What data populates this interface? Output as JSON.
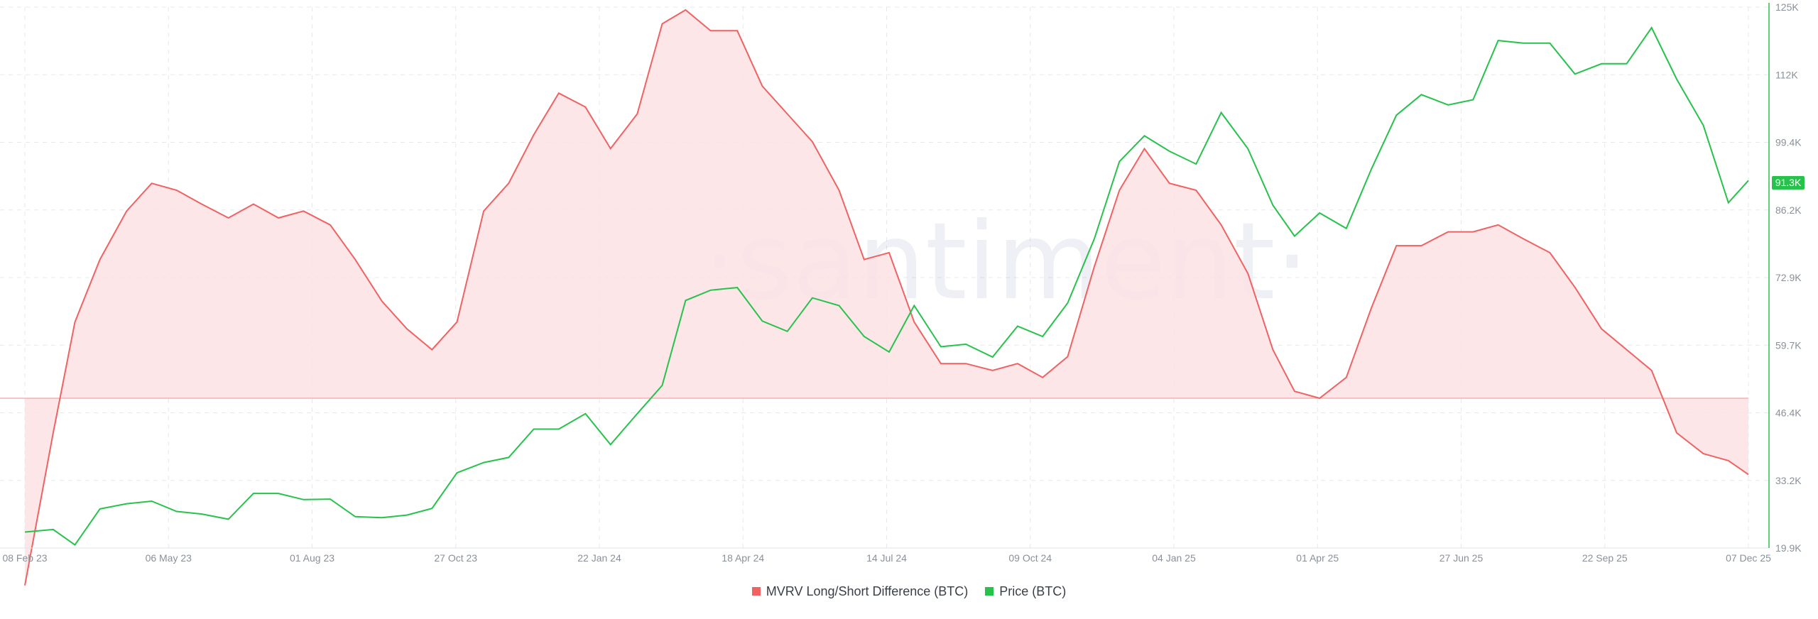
{
  "chart_data": {
    "type": "line",
    "watermark": "·santiment·",
    "x_ticks": [
      "08 Feb 23",
      "06 May 23",
      "01 Aug 23",
      "27 Oct 23",
      "22 Jan 24",
      "18 Apr 24",
      "14 Jul 24",
      "09 Oct 24",
      "04 Jan 25",
      "01 Apr 25",
      "27 Jun 25",
      "22 Sep 25",
      "07 Dec 25"
    ],
    "y_right": {
      "label_ticks": [
        "19.9K",
        "33.2K",
        "46.4K",
        "59.7K",
        "72.9K",
        "86.2K",
        "99.4K",
        "112K",
        "125K"
      ],
      "min": 19.9,
      "max": 125,
      "unit": "K"
    },
    "price_badge": "91.3K",
    "colors": {
      "mvrv": "#f06262",
      "mvrv_fill": "#fde2e4",
      "price": "#27c24c",
      "grid": "#e6e8ec"
    },
    "series": [
      {
        "name": "MVRV Long/Short Difference (BTC)",
        "color": "#f06262",
        "zero_level": 0,
        "axis_scale_note": "values expressed on same visual scale; baseline zero",
        "x": [
          "2023-02-08",
          "2023-02-25",
          "2023-03-10",
          "2023-03-25",
          "2023-04-10",
          "2023-04-25",
          "2023-05-10",
          "2023-05-25",
          "2023-06-10",
          "2023-06-25",
          "2023-07-10",
          "2023-07-25",
          "2023-08-10",
          "2023-08-25",
          "2023-09-10",
          "2023-09-25",
          "2023-10-10",
          "2023-10-25",
          "2023-11-10",
          "2023-11-25",
          "2023-12-10",
          "2023-12-25",
          "2024-01-10",
          "2024-01-25",
          "2024-02-10",
          "2024-02-25",
          "2024-03-10",
          "2024-03-25",
          "2024-04-10",
          "2024-04-25",
          "2024-05-10",
          "2024-05-25",
          "2024-06-10",
          "2024-06-25",
          "2024-07-10",
          "2024-07-25",
          "2024-08-10",
          "2024-08-25",
          "2024-09-10",
          "2024-09-25",
          "2024-10-10",
          "2024-10-25",
          "2024-11-10",
          "2024-11-25",
          "2024-12-10",
          "2024-12-25",
          "2025-01-10",
          "2025-01-25",
          "2025-02-10",
          "2025-02-25",
          "2025-03-10",
          "2025-03-25",
          "2025-04-10",
          "2025-04-25",
          "2025-05-10",
          "2025-05-25",
          "2025-06-10",
          "2025-06-25",
          "2025-07-10",
          "2025-07-25",
          "2025-08-10",
          "2025-08-25",
          "2025-09-10",
          "2025-09-25",
          "2025-10-10",
          "2025-10-25",
          "2025-11-10",
          "2025-11-25",
          "2025-12-07"
        ],
        "values": [
          -0.27,
          -0.05,
          0.11,
          0.2,
          0.27,
          0.31,
          0.3,
          0.28,
          0.26,
          0.28,
          0.26,
          0.27,
          0.25,
          0.2,
          0.14,
          0.1,
          0.07,
          0.11,
          0.27,
          0.31,
          0.38,
          0.44,
          0.42,
          0.36,
          0.41,
          0.54,
          0.56,
          0.53,
          0.53,
          0.45,
          0.41,
          0.37,
          0.3,
          0.2,
          0.21,
          0.11,
          0.05,
          0.05,
          0.04,
          0.05,
          0.03,
          0.06,
          0.19,
          0.3,
          0.36,
          0.31,
          0.3,
          0.25,
          0.18,
          0.07,
          0.01,
          0.0,
          0.03,
          0.13,
          0.22,
          0.22,
          0.24,
          0.24,
          0.25,
          0.23,
          0.21,
          0.16,
          0.1,
          0.07,
          0.04,
          -0.05,
          -0.08,
          -0.09,
          -0.11
        ]
      },
      {
        "name": "Price (BTC)",
        "color": "#27c24c",
        "unit": "USD thousands",
        "x": [
          "2023-02-08",
          "2023-02-25",
          "2023-03-10",
          "2023-03-25",
          "2023-04-10",
          "2023-04-25",
          "2023-05-10",
          "2023-05-25",
          "2023-06-10",
          "2023-06-25",
          "2023-07-10",
          "2023-07-25",
          "2023-08-10",
          "2023-08-25",
          "2023-09-10",
          "2023-09-25",
          "2023-10-10",
          "2023-10-25",
          "2023-11-10",
          "2023-11-25",
          "2023-12-10",
          "2023-12-25",
          "2024-01-10",
          "2024-01-25",
          "2024-02-10",
          "2024-02-25",
          "2024-03-10",
          "2024-03-25",
          "2024-04-10",
          "2024-04-25",
          "2024-05-10",
          "2024-05-25",
          "2024-06-10",
          "2024-06-25",
          "2024-07-10",
          "2024-07-25",
          "2024-08-10",
          "2024-08-25",
          "2024-09-10",
          "2024-09-25",
          "2024-10-10",
          "2024-10-25",
          "2024-11-10",
          "2024-11-25",
          "2024-12-10",
          "2024-12-25",
          "2025-01-10",
          "2025-01-25",
          "2025-02-10",
          "2025-02-25",
          "2025-03-10",
          "2025-03-25",
          "2025-04-10",
          "2025-04-25",
          "2025-05-10",
          "2025-05-25",
          "2025-06-10",
          "2025-06-25",
          "2025-07-10",
          "2025-07-25",
          "2025-08-10",
          "2025-08-25",
          "2025-09-10",
          "2025-09-25",
          "2025-10-10",
          "2025-10-25",
          "2025-11-10",
          "2025-11-25",
          "2025-12-07"
        ],
        "values": [
          23.0,
          23.5,
          20.5,
          27.5,
          28.5,
          29.0,
          27.0,
          26.5,
          25.5,
          30.5,
          30.5,
          29.3,
          29.4,
          26.0,
          25.8,
          26.3,
          27.6,
          34.5,
          36.5,
          37.5,
          43.0,
          43.0,
          46.0,
          40.0,
          46.0,
          51.5,
          68.0,
          70.0,
          70.5,
          64.0,
          62.0,
          68.5,
          67.0,
          61.0,
          58.0,
          67.0,
          59.0,
          59.5,
          57.0,
          63.0,
          61.0,
          67.5,
          80.0,
          95.0,
          100.0,
          97.0,
          94.5,
          104.5,
          97.5,
          86.5,
          80.5,
          85.0,
          82.0,
          93.5,
          104.0,
          108.0,
          106.0,
          107.0,
          118.5,
          118.0,
          118.0,
          112.0,
          114.0,
          114.0,
          121.0,
          111.0,
          102.0,
          87.0,
          91.3
        ]
      }
    ],
    "legend": [
      "MVRV Long/Short Difference (BTC)",
      "Price (BTC)"
    ],
    "legend_position": "bottom-center",
    "grid": true
  }
}
